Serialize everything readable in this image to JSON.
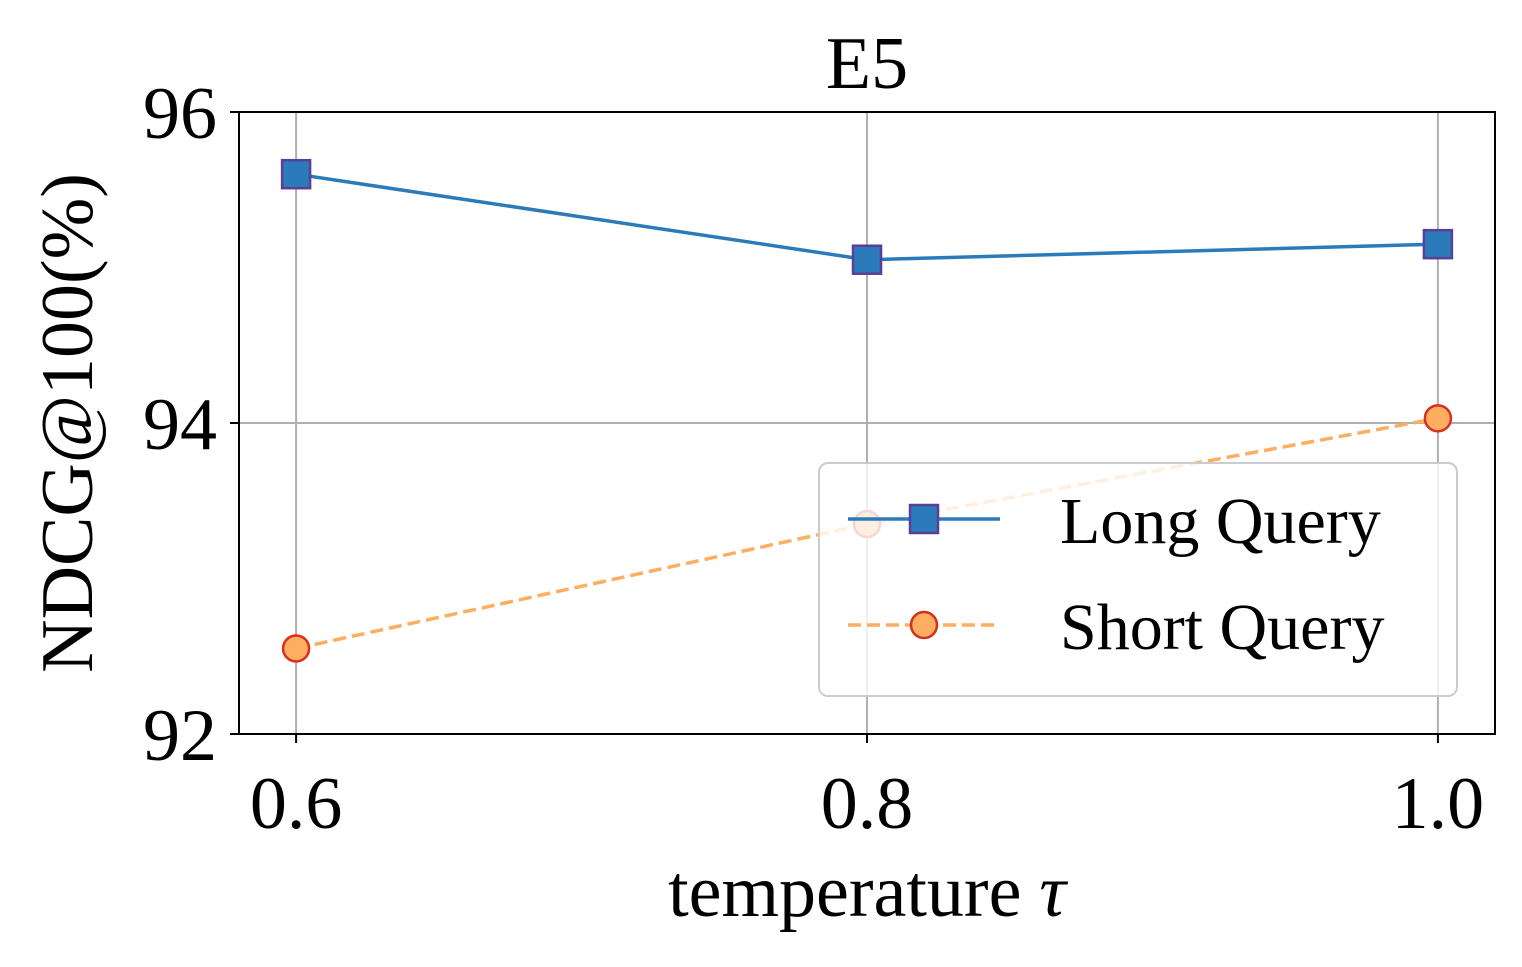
{
  "chart_data": {
    "type": "line",
    "title": "E5",
    "xlabel": "temperature",
    "xlabel_symbol": "τ",
    "ylabel": "NDCG@100(%)",
    "x": [
      0.6,
      0.8,
      1.0
    ],
    "x_tick_labels": [
      "0.6",
      "0.8",
      "1.0"
    ],
    "y_ticks": [
      92,
      94,
      96
    ],
    "y_tick_labels": [
      "92",
      "94",
      "96"
    ],
    "xlim": [
      0.58,
      1.02
    ],
    "ylim": [
      92,
      96
    ],
    "grid": true,
    "legend_position": "bottom-right",
    "series": [
      {
        "name": "Long Query",
        "values": [
          95.6,
          95.05,
          95.15
        ],
        "color": "#2b7bba",
        "marker": "square",
        "marker_edge": "#5b3e96",
        "line_style": "solid"
      },
      {
        "name": "Short Query",
        "values": [
          92.55,
          93.35,
          94.03
        ],
        "color": "#fdae61",
        "marker": "circle",
        "marker_edge": "#d7301f",
        "line_style": "dashed"
      }
    ]
  }
}
